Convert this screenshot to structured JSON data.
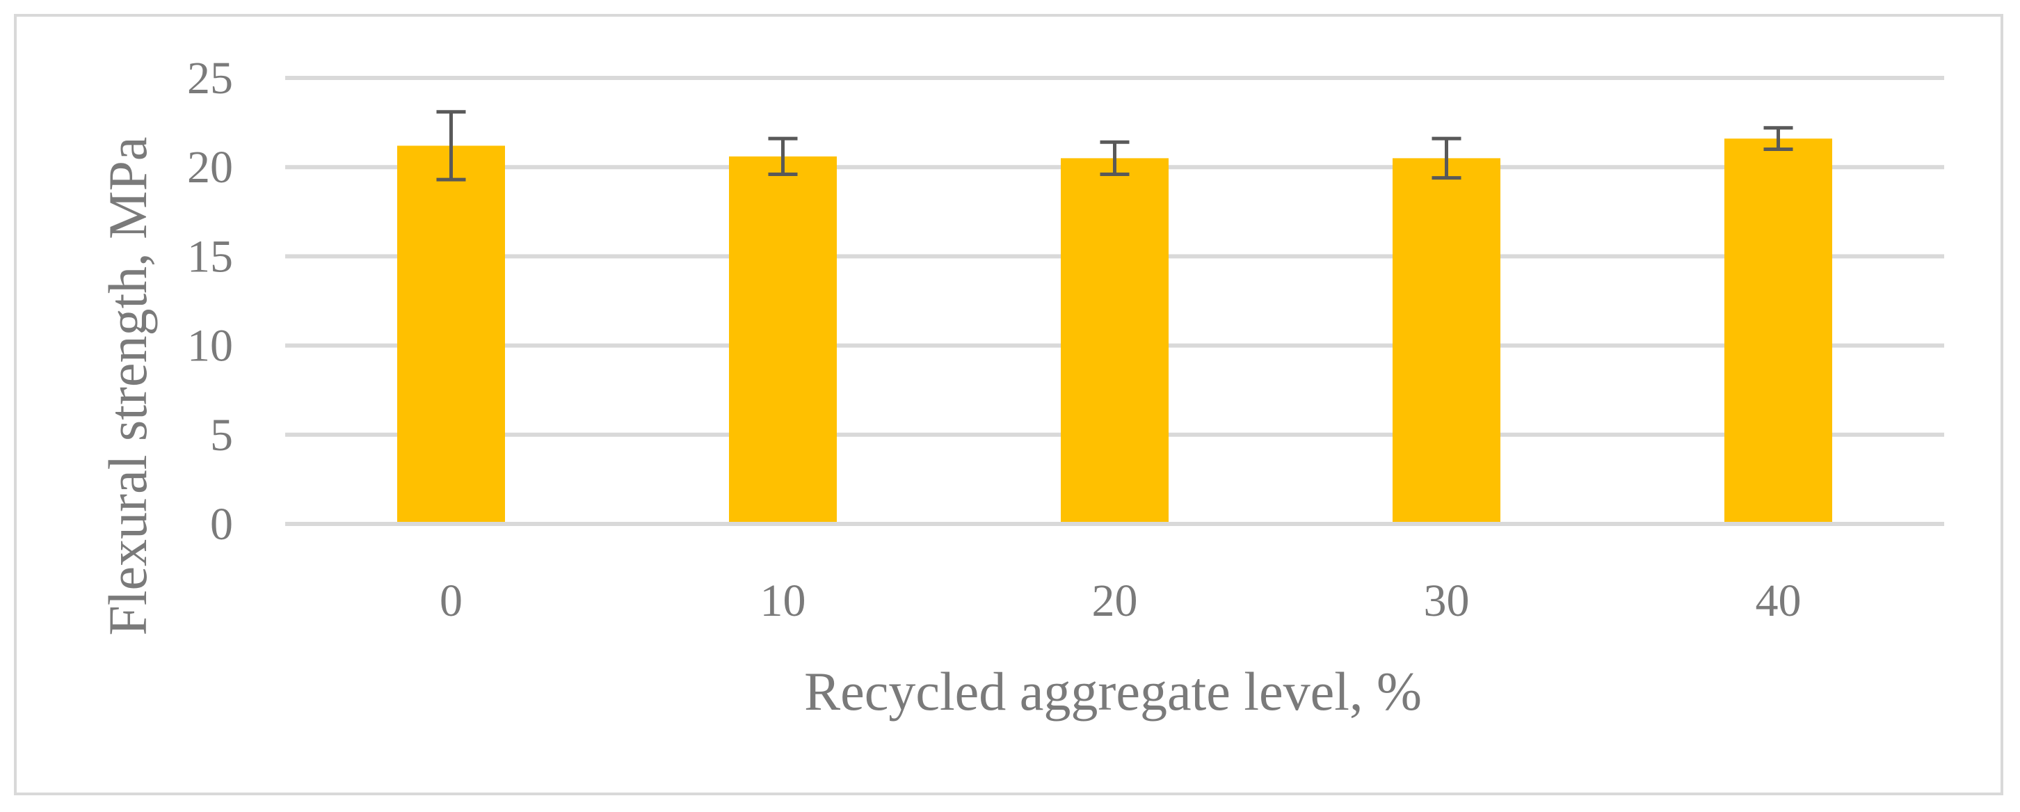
{
  "chart_data": {
    "type": "bar",
    "title": "",
    "xlabel": "Recycled aggregate level, %",
    "ylabel": "Flexural strength, MPa",
    "categories": [
      "0",
      "10",
      "20",
      "30",
      "40"
    ],
    "series": [
      {
        "values": [
          21.2,
          20.6,
          20.5,
          20.5,
          21.6
        ],
        "error": [
          1.9,
          1.0,
          0.9,
          1.1,
          0.6
        ]
      }
    ],
    "ylim": [
      0,
      25
    ],
    "yticks": [
      0,
      5,
      10,
      15,
      20,
      25
    ],
    "grid": true,
    "legend": "none",
    "colors": {
      "bar": "#FFC000",
      "error_bar": "#595959",
      "grid": "#d9d9d9",
      "text": "#7a7a7a",
      "border": "#d9d9d9"
    }
  }
}
